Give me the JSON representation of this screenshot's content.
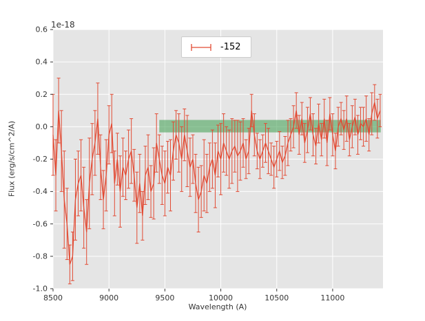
{
  "chart_data": {
    "type": "line",
    "title": "",
    "xlabel": "Wavelength (A)",
    "ylabel": "Flux (erg/s/cm^2/A)",
    "offset_label": "1e-18",
    "legend_label": "-152",
    "legend_position": "upper center",
    "grid": true,
    "xlim": [
      8500,
      11450
    ],
    "ylim": [
      -1.0,
      0.6
    ],
    "xticks": [
      "8500",
      "9000",
      "9500",
      "10000",
      "10500",
      "11000"
    ],
    "yticks": [
      "-1.0",
      "-0.8",
      "-0.6",
      "-0.4",
      "-0.2",
      "0.0",
      "0.2",
      "0.4",
      "0.6"
    ],
    "y_units_scale": "1e-18",
    "x_start": 8500,
    "x_step": 25,
    "y": [
      -0.05,
      -0.3,
      0.1,
      -0.15,
      -0.45,
      -0.6,
      -0.85,
      -0.8,
      -0.45,
      -0.35,
      -0.3,
      -0.5,
      -0.65,
      -0.35,
      -0.2,
      -0.1,
      0.05,
      -0.25,
      -0.45,
      -0.3,
      -0.05,
      0.02,
      -0.35,
      -0.2,
      -0.4,
      -0.25,
      -0.3,
      -0.2,
      -0.15,
      -0.3,
      -0.5,
      -0.35,
      -0.55,
      -0.3,
      -0.25,
      -0.4,
      -0.35,
      -0.1,
      -0.2,
      -0.3,
      -0.35,
      -0.25,
      -0.3,
      -0.15,
      -0.05,
      -0.1,
      -0.2,
      -0.05,
      -0.15,
      -0.25,
      -0.2,
      -0.35,
      -0.45,
      -0.4,
      -0.3,
      -0.35,
      -0.25,
      -0.2,
      -0.3,
      -0.15,
      -0.2,
      -0.1,
      -0.15,
      -0.2,
      -0.15,
      -0.12,
      -0.18,
      -0.15,
      -0.1,
      -0.2,
      -0.15,
      0.1,
      -0.05,
      -0.15,
      -0.2,
      -0.15,
      -0.1,
      -0.15,
      -0.2,
      -0.25,
      -0.2,
      -0.15,
      -0.22,
      -0.18,
      -0.1,
      -0.05,
      0.0,
      0.1,
      -0.05,
      0.05,
      -0.1,
      -0.02,
      0.08,
      -0.05,
      -0.12,
      0.02,
      -0.08,
      0.05,
      -0.1,
      0.08,
      -0.05,
      -0.15,
      0.0,
      0.05,
      -0.02,
      0.05,
      -0.08,
      0.0,
      0.06,
      -0.05,
      0.02,
      0.0,
      0.05,
      -0.05,
      0.08,
      0.15,
      0.05,
      0.1
    ],
    "yerr": [
      0.25,
      0.22,
      0.2,
      0.25,
      0.3,
      0.22,
      0.12,
      0.15,
      0.25,
      0.2,
      0.22,
      0.25,
      0.2,
      0.28,
      0.22,
      0.2,
      0.22,
      0.2,
      0.18,
      0.22,
      0.18,
      0.18,
      0.2,
      0.16,
      0.22,
      0.18,
      0.15,
      0.18,
      0.2,
      0.16,
      0.22,
      0.18,
      0.15,
      0.18,
      0.2,
      0.16,
      0.22,
      0.18,
      0.15,
      0.18,
      0.2,
      0.16,
      0.22,
      0.18,
      0.15,
      0.18,
      0.2,
      0.16,
      0.22,
      0.18,
      0.15,
      0.18,
      0.2,
      0.16,
      0.22,
      0.18,
      0.15,
      0.18,
      0.2,
      0.16,
      0.22,
      0.18,
      0.15,
      0.18,
      0.2,
      0.16,
      0.22,
      0.18,
      0.15,
      0.12,
      0.14,
      0.1,
      0.13,
      0.11,
      0.12,
      0.1,
      0.12,
      0.14,
      0.1,
      0.13,
      0.11,
      0.12,
      0.1,
      0.12,
      0.14,
      0.1,
      0.13,
      0.11,
      0.12,
      0.1,
      0.12,
      0.14,
      0.1,
      0.13,
      0.11,
      0.12,
      0.1,
      0.12,
      0.14,
      0.1,
      0.13,
      0.11,
      0.12,
      0.1,
      0.12,
      0.14,
      0.1,
      0.13,
      0.11,
      0.12,
      0.1,
      0.12,
      0.14,
      0.1,
      0.13,
      0.11,
      0.12,
      0.1
    ],
    "band": {
      "x0": 9450,
      "x1": 11430,
      "y0": -0.035,
      "y1": 0.042,
      "color": "#4aa35a",
      "opacity": 0.6
    },
    "colors": {
      "figure_bg": "#ffffff",
      "plot_bg": "#e5e5e5",
      "grid": "#ffffff",
      "line": "#e24a33",
      "tick": "#333333"
    }
  }
}
